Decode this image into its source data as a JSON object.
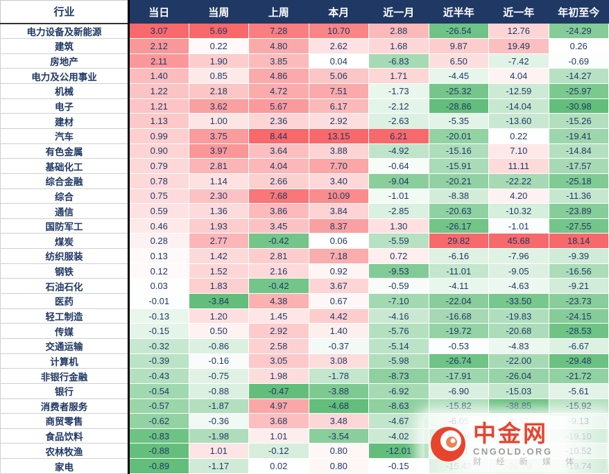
{
  "chart_data": {
    "type": "heatmap",
    "columns": [
      "行业",
      "当日",
      "当周",
      "上周",
      "本月",
      "近一月",
      "近半年",
      "近一年",
      "年初至今"
    ],
    "rows": [
      {
        "name": "电力设备及新能源",
        "values": [
          3.07,
          5.69,
          7.28,
          10.7,
          2.88,
          -26.54,
          12.76,
          -24.29
        ]
      },
      {
        "name": "建筑",
        "values": [
          2.12,
          0.22,
          4.8,
          2.62,
          1.68,
          9.87,
          19.49,
          0.26
        ]
      },
      {
        "name": "房地产",
        "values": [
          2.11,
          1.9,
          3.85,
          0.04,
          -6.83,
          6.5,
          -7.42,
          -0.69
        ]
      },
      {
        "name": "电力及公用事业",
        "values": [
          1.4,
          0.85,
          4.86,
          5.06,
          1.71,
          -4.45,
          4.04,
          -14.27
        ]
      },
      {
        "name": "机械",
        "values": [
          1.22,
          2.18,
          4.72,
          7.51,
          -1.73,
          -25.32,
          -12.59,
          -25.97
        ]
      },
      {
        "name": "电子",
        "values": [
          1.21,
          3.62,
          5.67,
          6.17,
          -2.12,
          -28.86,
          -14.04,
          -30.98
        ]
      },
      {
        "name": "建材",
        "values": [
          1.13,
          1.0,
          2.36,
          2.92,
          -2.63,
          -5.35,
          -13.6,
          -15.26
        ]
      },
      {
        "name": "汽车",
        "values": [
          0.99,
          3.75,
          8.44,
          13.15,
          6.21,
          -20.01,
          0.22,
          -19.41
        ]
      },
      {
        "name": "有色金属",
        "values": [
          0.9,
          3.97,
          3.64,
          3.88,
          -4.92,
          -15.16,
          7.1,
          -14.84
        ]
      },
      {
        "name": "基础化工",
        "values": [
          0.79,
          2.81,
          4.04,
          7.7,
          -0.64,
          -15.91,
          11.11,
          -17.57
        ]
      },
      {
        "name": "综合金融",
        "values": [
          0.78,
          1.14,
          2.66,
          3.4,
          -9.04,
          -20.21,
          -22.22,
          -25.18
        ]
      },
      {
        "name": "综合",
        "values": [
          0.75,
          2.3,
          7.68,
          10.09,
          -1.01,
          -8.38,
          4.2,
          -11.36
        ]
      },
      {
        "name": "通信",
        "values": [
          0.59,
          1.36,
          3.86,
          3.84,
          -2.85,
          -20.63,
          -10.32,
          -23.89
        ]
      },
      {
        "name": "国防军工",
        "values": [
          0.46,
          1.93,
          3.45,
          8.37,
          1.3,
          -26.17,
          -1.01,
          -27.55
        ]
      },
      {
        "name": "煤炭",
        "values": [
          0.28,
          2.77,
          -0.42,
          0.06,
          -5.59,
          29.82,
          45.68,
          18.14
        ]
      },
      {
        "name": "纺织服装",
        "values": [
          0.13,
          1.42,
          2.81,
          7.18,
          0.72,
          -6.16,
          -7.96,
          -9.39
        ]
      },
      {
        "name": "钢铁",
        "values": [
          0.12,
          1.52,
          2.16,
          0.92,
          -9.53,
          -11.01,
          -9.05,
          -16.56
        ]
      },
      {
        "name": "石油石化",
        "values": [
          0.03,
          1.83,
          -0.42,
          3.67,
          -0.59,
          -4.11,
          -4.63,
          -9.21
        ]
      },
      {
        "name": "医药",
        "values": [
          -0.01,
          -3.84,
          4.38,
          0.67,
          -7.1,
          -22.04,
          -33.5,
          -23.73
        ]
      },
      {
        "name": "轻工制造",
        "values": [
          -0.13,
          1.2,
          1.45,
          4.42,
          -4.16,
          -16.68,
          -19.83,
          -24.15
        ]
      },
      {
        "name": "传媒",
        "values": [
          -0.15,
          0.5,
          2.92,
          1.4,
          -5.76,
          -19.72,
          -20.68,
          -28.53
        ]
      },
      {
        "name": "交通运输",
        "values": [
          -0.32,
          -0.86,
          2.58,
          -0.37,
          -5.14,
          -0.53,
          -4.83,
          -6.67
        ]
      },
      {
        "name": "计算机",
        "values": [
          -0.39,
          -0.16,
          3.05,
          3.08,
          -5.98,
          -26.74,
          -22.0,
          -29.48
        ]
      },
      {
        "name": "非银行金融",
        "values": [
          -0.43,
          -0.75,
          1.98,
          -1.78,
          -8.73,
          -17.91,
          -26.04,
          -21.72
        ]
      },
      {
        "name": "银行",
        "values": [
          -0.54,
          -0.88,
          -0.47,
          -3.88,
          -6.92,
          -6.9,
          -15.03,
          -5.61
        ]
      },
      {
        "name": "消费者服务",
        "values": [
          -0.57,
          -1.87,
          4.97,
          -4.68,
          -8.63,
          -15.82,
          -38.85,
          -15.92
        ]
      },
      {
        "name": "商贸零售",
        "values": [
          -0.62,
          -0.36,
          3.68,
          3.48,
          -4.67,
          -6.05,
          -6.97,
          -9.13
        ]
      },
      {
        "name": "食品饮料",
        "values": [
          -0.83,
          -1.98,
          1.01,
          -3.54,
          -4.02,
          -13.96,
          -19.3,
          -19.1
        ]
      },
      {
        "name": "农林牧渔",
        "values": [
          -0.88,
          1.01,
          -0.12,
          0.8,
          -12.01,
          -8.81,
          1.95,
          -10.52
        ]
      },
      {
        "name": "家电",
        "values": [
          -0.89,
          -1.17,
          0.02,
          0.8,
          -0.15,
          -15.43,
          -26.7,
          -19.74
        ]
      }
    ],
    "value_unit": "%",
    "color_scale": "per-column: max positive = red, min negative = green, 0 = white",
    "grid": "white 1px between cells"
  },
  "watermark": {
    "title": "中金网",
    "domain": "CNGOLD.ORG",
    "slogan": "财 经 新 媒 体"
  },
  "colors": {
    "header_bg": "#1f3864",
    "header_fg": "#ffffff",
    "positive_max": "#f8696b",
    "negative_max": "#63be7b",
    "number_text": "#1f3864",
    "watermark_accent": "#e8432d"
  }
}
